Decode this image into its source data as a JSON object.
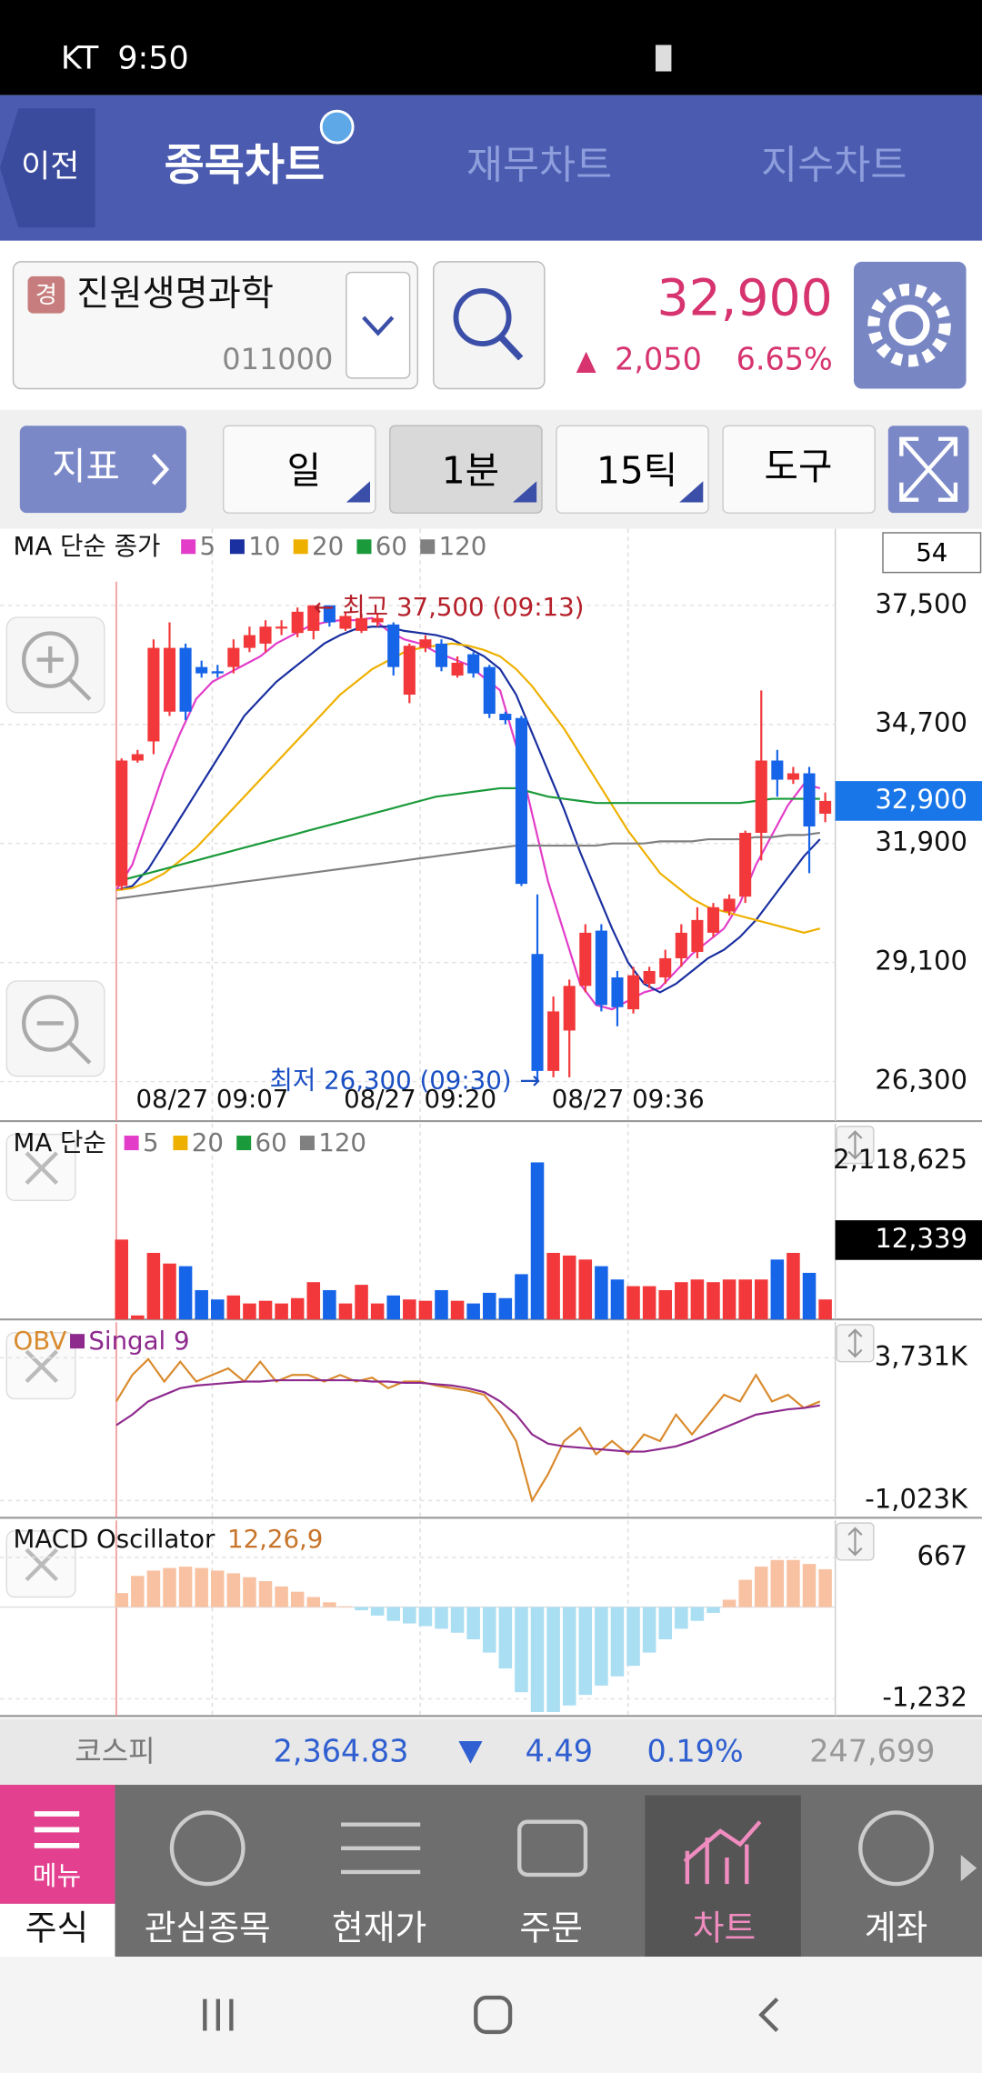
{
  "status_bar": {
    "carrier": "KT",
    "time": "9:50"
  },
  "tabs": {
    "back": "이전",
    "items": [
      "종목차트",
      "재무차트",
      "지수차트"
    ]
  },
  "stock": {
    "badge": "경",
    "name": "진원생명과학",
    "code": "011000",
    "price": "32,900",
    "change": "2,050",
    "rate": "6.65%"
  },
  "toolbar": {
    "indicator": "지표",
    "buttons": [
      "일",
      "1분",
      "15틱",
      "도구"
    ]
  },
  "chart_data": [
    {
      "type": "candlestick",
      "title": "MA 단순 종가",
      "count": "54",
      "categories": [
        null,
        null,
        null,
        null,
        null,
        null,
        "08/27 09:07",
        null,
        null,
        null,
        null,
        null,
        null,
        null,
        null,
        null,
        null,
        null,
        null,
        "08/27 09:20",
        null,
        null,
        null,
        null,
        null,
        null,
        null,
        null,
        null,
        null,
        null,
        null,
        "08/27 09:36",
        null,
        null,
        null,
        null,
        null,
        null,
        null,
        null,
        null,
        null,
        null,
        null
      ],
      "open": [
        30900,
        33850,
        34300,
        35000,
        36500,
        36050,
        35950,
        36050,
        36500,
        36600,
        37000,
        36850,
        36900,
        37500,
        36950,
        36900,
        37100,
        37050,
        35400,
        36500,
        36600,
        35850,
        36350,
        36050,
        34950,
        34850,
        29300,
        26550,
        27500,
        28550,
        29850,
        28750,
        28000,
        28600,
        28750,
        29200,
        29350,
        29800,
        30300,
        30650,
        32150,
        33850,
        33400,
        33550,
        32600
      ],
      "high": [
        33900,
        34100,
        36700,
        37100,
        36600,
        36200,
        36100,
        36700,
        37000,
        37150,
        37150,
        37450,
        37500,
        37500,
        37350,
        37300,
        37300,
        37100,
        36600,
        36800,
        36700,
        36300,
        36400,
        36100,
        35000,
        34900,
        30700,
        28300,
        28700,
        30000,
        30000,
        28900,
        29000,
        29000,
        29400,
        30000,
        30400,
        30500,
        30700,
        32200,
        35500,
        34100,
        33700,
        33700,
        33100
      ],
      "low": [
        30800,
        33800,
        34000,
        34900,
        34800,
        35800,
        35800,
        35900,
        36400,
        36400,
        36800,
        36750,
        36700,
        37000,
        36900,
        36850,
        37000,
        35850,
        35200,
        36400,
        35950,
        35800,
        35800,
        34850,
        34700,
        30900,
        26300,
        26400,
        26400,
        28400,
        27950,
        27600,
        27900,
        28500,
        28600,
        29000,
        29200,
        29700,
        30200,
        30500,
        31500,
        33000,
        33300,
        31200,
        32400
      ],
      "close": [
        33850,
        34000,
        36500,
        36500,
        35000,
        35900,
        35900,
        36500,
        36800,
        37000,
        37000,
        37350,
        37500,
        37100,
        37250,
        37200,
        37200,
        36050,
        36550,
        36700,
        36050,
        36150,
        35900,
        34950,
        34800,
        30950,
        26550,
        27950,
        28550,
        29800,
        28100,
        28050,
        28800,
        28900,
        29200,
        29800,
        30100,
        30400,
        30600,
        32150,
        33850,
        33400,
        33550,
        32300,
        32900
      ],
      "up_color": "#f2383a",
      "down_color": "#1664e8",
      "series": [
        {
          "name": "5",
          "color": "#e23cc8",
          "values": [
            30800,
            31400,
            32500,
            33600,
            34500,
            35300,
            35700,
            35900,
            36100,
            36300,
            36600,
            36800,
            37000,
            37100,
            37150,
            37150,
            37200,
            36900,
            36700,
            36600,
            36400,
            36250,
            36100,
            35800,
            35500,
            34200,
            32600,
            31000,
            29800,
            28600,
            28100,
            28000,
            28200,
            28400,
            28500,
            28900,
            29300,
            29600,
            29900,
            30500,
            31400,
            32100,
            32800,
            33300,
            33200
          ]
        },
        {
          "name": "10",
          "color": "#1a2fa0",
          "values": [
            30800,
            30900,
            31300,
            31900,
            32500,
            33100,
            33700,
            34300,
            34900,
            35300,
            35700,
            36000,
            36300,
            36600,
            36800,
            36950,
            37000,
            37000,
            36900,
            36850,
            36800,
            36700,
            36500,
            36300,
            36000,
            35400,
            34500,
            33600,
            32700,
            31700,
            30800,
            29900,
            29100,
            28600,
            28400,
            28600,
            28900,
            29200,
            29400,
            29700,
            30100,
            30600,
            31100,
            31600,
            32000
          ]
        },
        {
          "name": "20",
          "color": "#eeb000",
          "values": [
            30800,
            30850,
            31000,
            31200,
            31500,
            31800,
            32200,
            32600,
            33000,
            33400,
            33800,
            34200,
            34600,
            35000,
            35400,
            35700,
            36000,
            36200,
            36400,
            36500,
            36550,
            36600,
            36550,
            36450,
            36300,
            36000,
            35600,
            35100,
            34600,
            34000,
            33400,
            32800,
            32200,
            31700,
            31200,
            30900,
            30600,
            30400,
            30300,
            30200,
            30100,
            30000,
            29900,
            29800,
            29900
          ]
        },
        {
          "name": "60",
          "color": "#1a9a3a",
          "values": [
            31000,
            31100,
            31200,
            31300,
            31400,
            31500,
            31600,
            31700,
            31800,
            31900,
            32000,
            32100,
            32200,
            32300,
            32400,
            32500,
            32600,
            32700,
            32800,
            32900,
            33000,
            33050,
            33100,
            33150,
            33200,
            33200,
            33100,
            33000,
            32950,
            32900,
            32850,
            32850,
            32850,
            32850,
            32850,
            32850,
            32850,
            32850,
            32850,
            32850,
            32900,
            32950,
            32950,
            32950,
            32950
          ]
        },
        {
          "name": "120",
          "color": "#808080",
          "values": [
            30600,
            30650,
            30700,
            30750,
            30800,
            30850,
            30900,
            30950,
            31000,
            31050,
            31100,
            31150,
            31200,
            31250,
            31300,
            31350,
            31400,
            31450,
            31500,
            31550,
            31600,
            31650,
            31700,
            31750,
            31800,
            31850,
            31850,
            31850,
            31850,
            31850,
            31850,
            31900,
            31900,
            31900,
            31950,
            31950,
            31950,
            32000,
            32000,
            32000,
            32050,
            32050,
            32100,
            32100,
            32150
          ]
        }
      ],
      "ylim": [
        25370,
        39300
      ],
      "yticks": [
        {
          "value": 37500,
          "label": "37,500"
        },
        {
          "value": 34700,
          "label": "34,700"
        },
        {
          "value": 31900,
          "label": "31,900"
        },
        {
          "value": 29100,
          "label": "29,100"
        },
        {
          "value": 26300,
          "label": "26,300"
        }
      ],
      "last_price": {
        "value": 32900,
        "label": "32,900"
      },
      "annotations": {
        "high": "← 최고 37,500 (09:13)",
        "low": "최저 26,300 (09:30) →"
      },
      "grid": true
    },
    {
      "type": "bar",
      "title": "MA 단순",
      "current": "12,339",
      "ma_legend": [
        {
          "name": "5",
          "color": "#e23cc8"
        },
        {
          "name": "20",
          "color": "#eeb000"
        },
        {
          "name": "60",
          "color": "#1a9a3a"
        },
        {
          "name": "120",
          "color": "#808080"
        }
      ],
      "values": [
        1068000,
        53400,
        890000,
        747600,
        712000,
        391600,
        267000,
        320400,
        213600,
        249200,
        213600,
        284800,
        498400,
        391600,
        213600,
        462800,
        213600,
        320400,
        267000,
        249200,
        391600,
        249200,
        213600,
        356000,
        284800,
        605200,
        2100400,
        890000,
        854400,
        801000,
        712000,
        534000,
        445000,
        445000,
        391600,
        498400,
        534000,
        498400,
        534000,
        534000,
        534000,
        801000,
        890000,
        623000,
        267000
      ],
      "ylim": [
        0,
        2617000
      ],
      "yticks": [
        {
          "value": 2118625,
          "label": "2,118,625"
        }
      ]
    },
    {
      "type": "line",
      "series": [
        {
          "name": "OBV",
          "color": "#d98a2c",
          "values": [
            2278,
            3159,
            3687,
            2939,
            3599,
            2939,
            3159,
            3379,
            2939,
            3599,
            2939,
            3159,
            3159,
            2939,
            3159,
            2939,
            3071,
            2719,
            2939,
            2939,
            2807,
            2719,
            2631,
            2499,
            1838,
            958,
            -1023,
            -143,
            958,
            1398,
            518,
            958,
            518,
            1178,
            958,
            1838,
            1178,
            1838,
            2499,
            2278,
            3159,
            2278,
            2499,
            2058,
            2278
          ]
        },
        {
          "name": "Singal 9",
          "color": "#8e2a8e",
          "values": [
            1486,
            1838,
            2278,
            2499,
            2719,
            2807,
            2851,
            2895,
            2939,
            2939,
            2983,
            2983,
            2983,
            2983,
            2983,
            2983,
            2939,
            2939,
            2895,
            2895,
            2851,
            2807,
            2719,
            2587,
            2278,
            1838,
            1178,
            870,
            782,
            738,
            694,
            650,
            606,
            606,
            694,
            782,
            958,
            1178,
            1398,
            1618,
            1838,
            1926,
            2014,
            2058,
            2146
          ]
        }
      ],
      "ylim": [
        -1595,
        4920
      ],
      "yticks": [
        {
          "value": 3731,
          "label": "3,731K"
        },
        {
          "value": -1023,
          "label": "-1,023K"
        }
      ]
    },
    {
      "type": "bar",
      "title": "MACD Oscillator",
      "subtitle": "12,26,9",
      "pos_color": "#f8c2a2",
      "neg_color": "#a9def3",
      "values": [
        188,
        419,
        490,
        525,
        543,
        525,
        490,
        454,
        401,
        348,
        277,
        206,
        135,
        64,
        11,
        -43,
        -114,
        -185,
        -220,
        -256,
        -291,
        -344,
        -433,
        -611,
        -824,
        -1143,
        -1409,
        -1409,
        -1321,
        -1179,
        -1054,
        -930,
        -788,
        -611,
        -433,
        -291,
        -185,
        -78,
        99,
        366,
        543,
        632,
        632,
        579,
        508
      ],
      "ylim": [
        -1463,
        1164
      ],
      "yticks": [
        667,
        {
          "value": -1232,
          "label": "-1,232"
        }
      ]
    }
  ],
  "index_bar": {
    "name": "코스피",
    "value": "2,364.83",
    "change": "4.49",
    "rate": "0.19%",
    "volume": "247,699"
  },
  "nav": {
    "menu": "메뉴",
    "items": [
      "주식",
      "관심종목",
      "현재가",
      "주문",
      "차트",
      "계좌"
    ]
  }
}
